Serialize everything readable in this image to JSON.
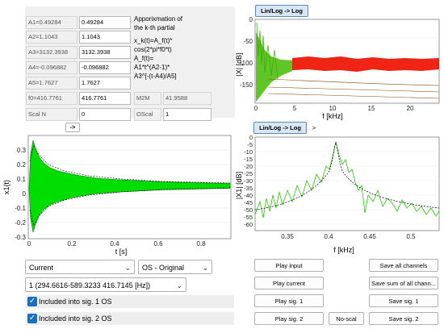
{
  "params": {
    "rows": [
      {
        "label": "A1=0.49284",
        "value": "0.49284"
      },
      {
        "label": "A2=1.1043",
        "value": "1.1043"
      },
      {
        "label": "A3=3132.3938",
        "value": "3132.3938"
      },
      {
        "label": "A4=-0.096882",
        "value": "-0.096882"
      },
      {
        "label": "A5=1.7627",
        "value": "1.7627"
      },
      {
        "label": "f0=416.7761",
        "value": "416.7761"
      }
    ],
    "scal_label": "Scal N",
    "scal_value": "0",
    "oscal_label": "OScal",
    "oscal_value": "1",
    "m2m_label": "M2M",
    "m2m_value": "41.9588",
    "arrow_button": "->"
  },
  "formula": {
    "title_line1": "Apporixmation of",
    "title_line2": "the k-th partial",
    "line1": "x_k(t)=A_f(t)*",
    "line2": "cos(2*pi*f0*t)",
    "line3": "A_f(t)=",
    "line4": "A1*t^(A2-1)*",
    "line5": "A3^[-(t-A4)/A5]"
  },
  "plot_top": {
    "toggle_label": "Lin/Log -> Log",
    "ylabel": "|X| [dB]",
    "xlabel": "f [kHz]",
    "yticks": [
      "0",
      "-50",
      "-100",
      "-150"
    ],
    "xticks": [
      "0",
      "5",
      "10",
      "15",
      "20"
    ]
  },
  "plot_bottom": {
    "toggle_label": "Lin/Log -> Log",
    "arrow_label": ">",
    "ylabel": "|X1| [dB]",
    "xlabel": "f [kHz]",
    "yticks": [
      "0",
      "-5",
      "-10",
      "-15",
      "-20",
      "-25",
      "-30",
      "-35",
      "-40",
      "-45",
      "-50",
      "-55",
      "-60"
    ],
    "xticks": [
      "0.35",
      "0.4",
      "0.45",
      "0.5"
    ]
  },
  "plot_time": {
    "ylabel": "x1(t)",
    "xlabel": "t [s]",
    "yticks": [
      "0.3",
      "0.2",
      "0.1",
      "0",
      "-0.1",
      "-0.2",
      "-0.3"
    ],
    "xticks": [
      "0",
      "0.2",
      "0.4",
      "0.6",
      "0.8"
    ]
  },
  "controls": {
    "mode_select": "Current",
    "os_select": "OS - Original",
    "partial_select": "1 (294.6616-589.3233 416.7145 [Hz])",
    "check1_label": "Included into sig. 1 OS",
    "check2_label": "Included into sig. 2 OS"
  },
  "buttons": {
    "play_input": "Play input",
    "save_all": "Save all channels",
    "play_current": "Play current",
    "save_sum": "Save sum of all chann...",
    "play_sig1": "Play sig. 1",
    "save_sig1": "Save sig. 1",
    "play_sig2": "Play sig. 2",
    "no_scal": "No-scal",
    "save_sig2": "Save sig. 2"
  },
  "colors": {
    "envelope_green": "#00e600",
    "spectrum_red": "#ee1100",
    "spectrum_green": "#33cc00",
    "toggle_blue": "#d8e6f5",
    "checkbox_blue": "#1a6fc4"
  }
}
